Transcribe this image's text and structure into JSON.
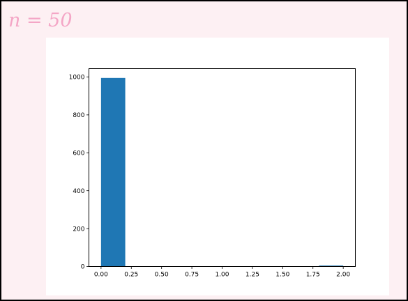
{
  "slide": {
    "title": "n = 50",
    "background": "#fdf0f3",
    "title_color": "#f4a6c6"
  },
  "chart_data": {
    "type": "bar",
    "title": "",
    "xlabel": "",
    "ylabel": "",
    "bar_color": "#1f77b4",
    "xlim": [
      -0.1,
      2.1
    ],
    "ylim": [
      0,
      1044
    ],
    "bins": [
      {
        "x0": 0.0,
        "x1": 0.2,
        "value": 995
      },
      {
        "x0": 0.2,
        "x1": 0.4,
        "value": 0
      },
      {
        "x0": 0.4,
        "x1": 0.6,
        "value": 0
      },
      {
        "x0": 0.6,
        "x1": 0.8,
        "value": 0
      },
      {
        "x0": 0.8,
        "x1": 1.0,
        "value": 0
      },
      {
        "x0": 1.0,
        "x1": 1.2,
        "value": 0
      },
      {
        "x0": 1.2,
        "x1": 1.4,
        "value": 0
      },
      {
        "x0": 1.4,
        "x1": 1.6,
        "value": 0
      },
      {
        "x0": 1.6,
        "x1": 1.8,
        "value": 0
      },
      {
        "x0": 1.8,
        "x1": 2.0,
        "value": 5
      }
    ],
    "x_ticks": [
      "0.00",
      "0.25",
      "0.50",
      "0.75",
      "1.00",
      "1.25",
      "1.50",
      "1.75",
      "2.00"
    ],
    "y_ticks": [
      "0",
      "200",
      "400",
      "600",
      "800",
      "1000"
    ]
  }
}
